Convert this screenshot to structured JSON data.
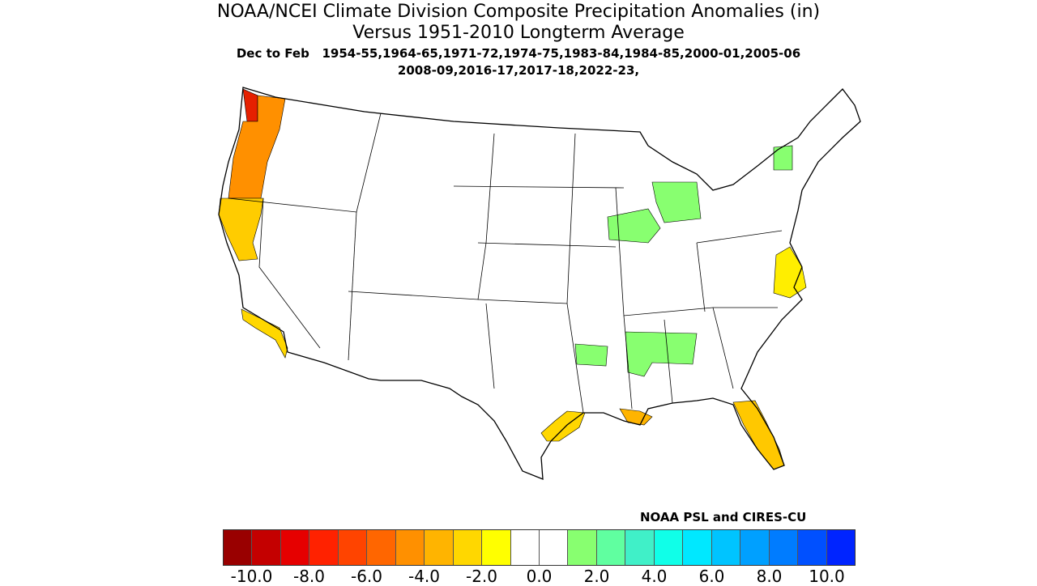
{
  "title": {
    "line1": "NOAA/NCEI Climate Division Composite Precipitation Anomalies (in)",
    "line2": "Versus 1951-2010 Longterm Average",
    "line3": "Dec to Feb   1954-55,1964-65,1971-72,1974-75,1983-84,1984-85,2000-01,2005-06",
    "line4": "2008-09,2016-17,2017-18,2022-23,"
  },
  "credit": "NOAA PSL and CIRES-CU",
  "colorbar": {
    "colors": [
      "#990000",
      "#c40000",
      "#e60000",
      "#ff2200",
      "#ff4400",
      "#ff6600",
      "#ff9000",
      "#ffb400",
      "#ffd700",
      "#ffff00",
      "#ffffff",
      "#ffffff",
      "#88ff70",
      "#60ffa0",
      "#40f0c8",
      "#10ffe8",
      "#00e8ff",
      "#00c4ff",
      "#00a0ff",
      "#007cff",
      "#0050ff",
      "#0024ff"
    ],
    "labels": [
      "-10.0",
      "-8.0",
      "-6.0",
      "-4.0",
      "-2.0",
      "0.0",
      "2.0",
      "4.0",
      "6.0",
      "8.0",
      "10.0"
    ]
  },
  "regions": [
    {
      "area": "Western Washington coast",
      "anomaly_class": "-8 to -10",
      "color": "#e62000"
    },
    {
      "area": "Washington / Oregon Cascades and coast",
      "anomaly_class": "-2 to -6",
      "color": "#ff9000"
    },
    {
      "area": "Northern California",
      "anomaly_class": "-2 to -4",
      "color": "#ffcc00"
    },
    {
      "area": "Southern California coast",
      "anomaly_class": "-2",
      "color": "#ffd700"
    },
    {
      "area": "Texas Gulf coast",
      "anomaly_class": "-2",
      "color": "#ffd700"
    },
    {
      "area": "Southern Louisiana",
      "anomaly_class": "-2 to -4",
      "color": "#ffb400"
    },
    {
      "area": "Florida peninsula",
      "anomaly_class": "-2 to -4",
      "color": "#ffc800"
    },
    {
      "area": "Virginia / Delmarva",
      "anomaly_class": "-2",
      "color": "#ffee00"
    },
    {
      "area": "Central New York",
      "anomaly_class": "+2",
      "color": "#88ff70"
    },
    {
      "area": "Michigan",
      "anomaly_class": "+2",
      "color": "#88ff70"
    },
    {
      "area": "Illinois / Indiana",
      "anomaly_class": "+2",
      "color": "#88ff70"
    },
    {
      "area": "Arkansas",
      "anomaly_class": "+2",
      "color": "#88ff70"
    },
    {
      "area": "Mississippi / Alabama",
      "anomaly_class": "+2",
      "color": "#88ff70"
    }
  ]
}
